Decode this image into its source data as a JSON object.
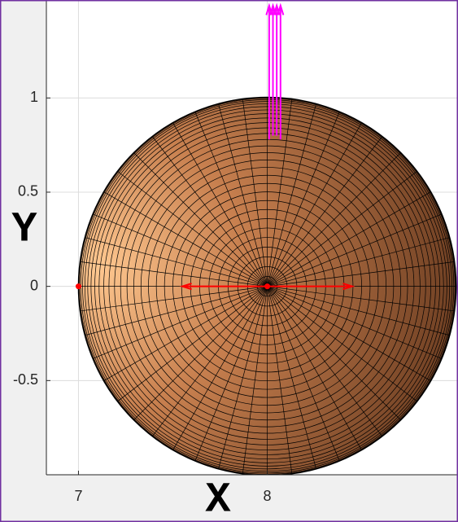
{
  "chart_data": {
    "type": "surface",
    "xlabel": "X",
    "ylabel": "Y",
    "xlim": [
      6.83,
      9.01
    ],
    "ylim": [
      -1,
      1.52
    ],
    "xticks": [
      7,
      8
    ],
    "yticks": [
      -0.5,
      0,
      0.5,
      1
    ],
    "grid": true,
    "sphere": {
      "x": 8,
      "y": 0,
      "radius": 1,
      "color": "#c8804f",
      "edge_color": "#000000"
    },
    "quivers": [
      {
        "color": "#ff00ff",
        "x": [
          8.01,
          8.03,
          8.05,
          8.07
        ],
        "y": [
          0.78,
          0.8,
          0.8,
          0.78
        ],
        "u": [
          0,
          0,
          0,
          0
        ],
        "v": [
          0.71,
          0.69,
          0.69,
          0.71
        ]
      },
      {
        "color": "#ff0000",
        "x": [
          8,
          8
        ],
        "y": [
          0,
          0
        ],
        "u": [
          -0.45,
          0.45
        ],
        "v": [
          0,
          0
        ]
      }
    ],
    "points": [
      {
        "x": 8,
        "y": 0,
        "color": "#ff0000"
      },
      {
        "x": 7,
        "y": 0,
        "color": "#ff0000"
      }
    ]
  }
}
